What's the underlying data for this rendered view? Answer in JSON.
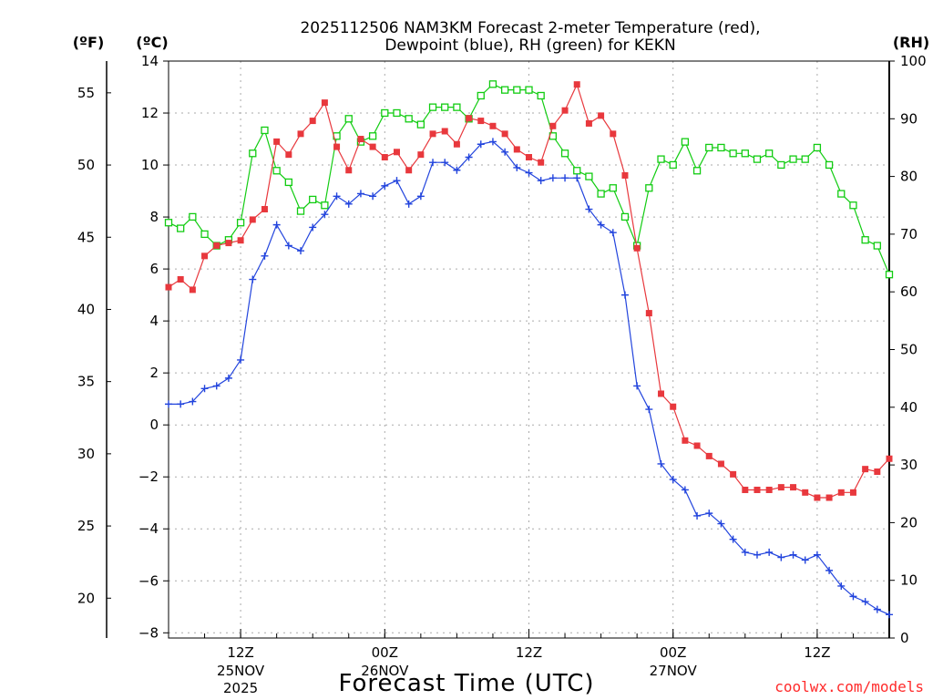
{
  "colors": {
    "temperature": "#e8383d",
    "dewpoint": "#2244dd",
    "rh": "#11cc11",
    "grid": "#aaaaaa",
    "credit": "#ff2a2a"
  },
  "chart_data": {
    "type": "line",
    "title_line1": "2025112506 NAM3KM Forecast 2-meter Temperature (red),",
    "title_line2": "Dewpoint (blue), RH (green) for KEKN",
    "xlabel": "Forecast Time (UTC)",
    "credit": "coolwx.com/models",
    "units": {
      "fahrenheit": "(ºF)",
      "celsius": "(ºC)",
      "rh": "(RH)"
    },
    "x_range_hours": [
      0,
      60
    ],
    "y_celsius_range": [
      -8.2,
      14
    ],
    "y_rh_range": [
      0,
      100
    ],
    "celsius_ticks": [
      "14",
      "12",
      "10",
      "8",
      "6",
      "4",
      "2",
      "0",
      "−2",
      "−4",
      "−6",
      "−8"
    ],
    "celsius_tick_values": [
      14,
      12,
      10,
      8,
      6,
      4,
      2,
      0,
      -2,
      -4,
      -6,
      -8
    ],
    "fahrenheit_ticks": [
      "55",
      "50",
      "45",
      "40",
      "35",
      "30",
      "25",
      "20"
    ],
    "fahrenheit_tick_values": [
      55,
      50,
      45,
      40,
      35,
      30,
      25,
      20
    ],
    "rh_ticks": [
      "100",
      "90",
      "80",
      "70",
      "60",
      "50",
      "40",
      "30",
      "20",
      "10",
      "0"
    ],
    "rh_tick_values": [
      100,
      90,
      80,
      70,
      60,
      50,
      40,
      30,
      20,
      10,
      0
    ],
    "x_ticks": [
      {
        "hour": 6,
        "line1": "12Z",
        "line2": "25NOV",
        "line3": "2025"
      },
      {
        "hour": 18,
        "line1": "00Z",
        "line2": "26NOV",
        "line3": ""
      },
      {
        "hour": 30,
        "line1": "12Z",
        "line2": "",
        "line3": ""
      },
      {
        "hour": 42,
        "line1": "00Z",
        "line2": "27NOV",
        "line3": ""
      },
      {
        "hour": 54,
        "line1": "12Z",
        "line2": "",
        "line3": ""
      }
    ],
    "series": [
      {
        "name": "Temperature",
        "unit": "°C",
        "values": [
          5.3,
          5.6,
          5.2,
          6.5,
          6.9,
          7.0,
          7.1,
          7.9,
          8.3,
          10.9,
          10.4,
          11.2,
          11.7,
          12.4,
          10.7,
          9.8,
          11.0,
          10.7,
          10.3,
          10.5,
          9.8,
          10.4,
          11.2,
          11.3,
          10.8,
          11.8,
          11.7,
          11.5,
          11.2,
          10.6,
          10.3,
          10.1,
          11.5,
          12.1,
          13.1,
          11.6,
          11.9,
          11.2,
          9.6,
          6.8,
          4.3,
          1.2,
          0.7,
          -0.6,
          -0.8,
          -1.2,
          -1.5,
          -1.9,
          -2.5,
          -2.5,
          -2.5,
          -2.4,
          -2.4,
          -2.6,
          -2.8,
          -2.8,
          -2.6,
          -2.6,
          -1.7,
          -1.8,
          -1.3
        ]
      },
      {
        "name": "Dewpoint",
        "unit": "°C",
        "values": [
          0.8,
          0.8,
          0.9,
          1.4,
          1.5,
          1.8,
          2.5,
          5.6,
          6.5,
          7.7,
          6.9,
          6.7,
          7.6,
          8.1,
          8.8,
          8.5,
          8.9,
          8.8,
          9.2,
          9.4,
          8.5,
          8.8,
          10.1,
          10.1,
          9.8,
          10.3,
          10.8,
          10.9,
          10.5,
          9.9,
          9.7,
          9.4,
          9.5,
          9.5,
          9.5,
          8.3,
          7.7,
          7.4,
          5.0,
          1.5,
          0.6,
          -1.5,
          -2.1,
          -2.5,
          -3.5,
          -3.4,
          -3.8,
          -4.4,
          -4.9,
          -5.0,
          -4.9,
          -5.1,
          -5.0,
          -5.2,
          -5.0,
          -5.6,
          -6.2,
          -6.6,
          -6.8,
          -7.1,
          -7.3
        ]
      },
      {
        "name": "RH",
        "unit": "%",
        "values": [
          72,
          71,
          73,
          70,
          68,
          69,
          72,
          84,
          88,
          81,
          79,
          74,
          76,
          75,
          87,
          90,
          86,
          87,
          91,
          91,
          90,
          89,
          92,
          92,
          92,
          90,
          94,
          96,
          95,
          95,
          95,
          94,
          87,
          84,
          81,
          80,
          77,
          78,
          73,
          68,
          78,
          83,
          82,
          86,
          81,
          85,
          85,
          84,
          84,
          83,
          84,
          82,
          83,
          83,
          85,
          82,
          77,
          75,
          69,
          68,
          63
        ]
      }
    ]
  }
}
